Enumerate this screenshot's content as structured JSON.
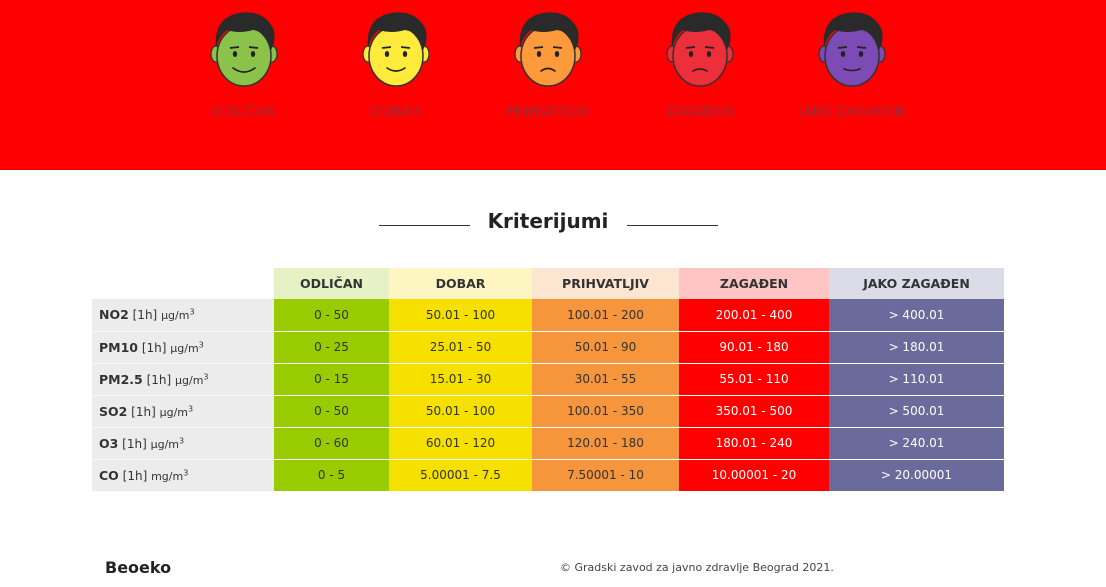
{
  "hero": {
    "levels": [
      {
        "label": "ODLIČAN",
        "icon": "green-smiling-face-icon",
        "skin": "#8bc34a"
      },
      {
        "label": "DOBAR",
        "icon": "yellow-smiling-face-icon",
        "skin": "#ffeb3b"
      },
      {
        "label": "PRIHVATLJIV",
        "icon": "orange-frowning-face-icon",
        "skin": "#ff9a3c"
      },
      {
        "label": "ZAGAĐEN",
        "icon": "red-angry-face-icon",
        "skin": "#ec2f3a"
      },
      {
        "label": "JAKO ZAGAĐEN",
        "icon": "purple-sick-face-icon",
        "skin": "#7c4bb6"
      }
    ],
    "background": "#ff0000"
  },
  "section_title": "Kriterijumi",
  "table": {
    "columns": [
      {
        "label": "ODLIČAN",
        "header_bg": "#e6f2c6",
        "cell_bg": "#99cc00",
        "cell_color": "#333333"
      },
      {
        "label": "DOBAR",
        "header_bg": "#fdf6c2",
        "cell_bg": "#f5e000",
        "cell_color": "#333333"
      },
      {
        "label": "PRIHVATLJIV",
        "header_bg": "#fde6d1",
        "cell_bg": "#f5963c",
        "cell_color": "#333333"
      },
      {
        "label": "ZAGAĐEN",
        "header_bg": "#ffc4c4",
        "cell_bg": "#ff0000",
        "cell_color": "#ffffff"
      },
      {
        "label": "JAKO ZAGAĐEN",
        "header_bg": "#dcdce8",
        "cell_bg": "#6a6a9c",
        "cell_color": "#ffffff"
      }
    ],
    "rows": [
      {
        "name": "NO2",
        "avg": "[1h]",
        "unit": "µg/m",
        "exp": "3",
        "values": [
          "0 - 50",
          "50.01 - 100",
          "100.01 - 200",
          "200.01 - 400",
          "> 400.01"
        ]
      },
      {
        "name": "PM10",
        "avg": "[1h]",
        "unit": "µg/m",
        "exp": "3",
        "values": [
          "0 - 25",
          "25.01 - 50",
          "50.01 - 90",
          "90.01 - 180",
          "> 180.01"
        ]
      },
      {
        "name": "PM2.5",
        "avg": "[1h]",
        "unit": "µg/m",
        "exp": "3",
        "values": [
          "0 - 15",
          "15.01 - 30",
          "30.01 - 55",
          "55.01 - 110",
          "> 110.01"
        ]
      },
      {
        "name": "SO2",
        "avg": "[1h]",
        "unit": "µg/m",
        "exp": "3",
        "values": [
          "0 - 50",
          "50.01 - 100",
          "100.01 - 350",
          "350.01 - 500",
          "> 500.01"
        ]
      },
      {
        "name": "O3",
        "avg": "[1h]",
        "unit": "µg/m",
        "exp": "3",
        "values": [
          "0 - 60",
          "60.01 - 120",
          "120.01 - 180",
          "180.01 - 240",
          "> 240.01"
        ]
      },
      {
        "name": "CO",
        "avg": "[1h]",
        "unit": "mg/m",
        "exp": "3",
        "values": [
          "0 - 5",
          "5.00001 - 7.5",
          "7.50001 - 10",
          "10.00001 - 20",
          "> 20.00001"
        ]
      }
    ]
  },
  "footer": {
    "brand": "Beoeko",
    "copyright": "© Gradski zavod za javno zdravlje Beograd 2021."
  }
}
